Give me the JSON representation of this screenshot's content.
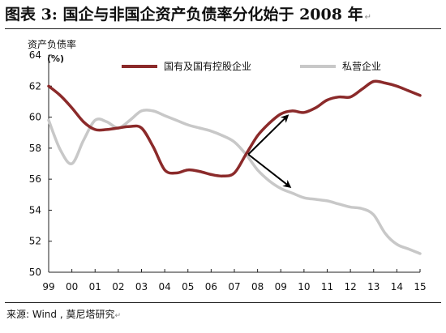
{
  "header": {
    "title": "图表 3:  国企与非国企资产负债率分化始于 2008 年",
    "title_mark": "↵"
  },
  "footer": {
    "source": "来源:  Wind  ,  莫尼塔研究",
    "source_mark": "↵"
  },
  "chart_data": {
    "type": "line",
    "ylabel": "资产负债率",
    "yunit": "(%)",
    "ylim": [
      50,
      64
    ],
    "yticks": [
      50,
      52,
      54,
      56,
      58,
      60,
      62,
      64
    ],
    "xlim": [
      1999,
      2015
    ],
    "xticks": [
      {
        "x": 1999,
        "label": "99"
      },
      {
        "x": 2000,
        "label": "00"
      },
      {
        "x": 2001,
        "label": "01"
      },
      {
        "x": 2002,
        "label": "02"
      },
      {
        "x": 2003,
        "label": "03"
      },
      {
        "x": 2004,
        "label": "04"
      },
      {
        "x": 2005,
        "label": "05"
      },
      {
        "x": 2006,
        "label": "06"
      },
      {
        "x": 2007,
        "label": "07"
      },
      {
        "x": 2008,
        "label": "08"
      },
      {
        "x": 2009,
        "label": "09"
      },
      {
        "x": 2010,
        "label": "10"
      },
      {
        "x": 2011,
        "label": "11"
      },
      {
        "x": 2012,
        "label": "12"
      },
      {
        "x": 2013,
        "label": "13"
      },
      {
        "x": 2014,
        "label": "14"
      },
      {
        "x": 2015,
        "label": "15"
      }
    ],
    "grid": false,
    "legend_position": "top",
    "series": [
      {
        "name": "国有及国有控股企业",
        "color": "#8b2a2a",
        "points": [
          [
            1999.0,
            62.0
          ],
          [
            1999.5,
            61.4
          ],
          [
            2000.0,
            60.6
          ],
          [
            2000.5,
            59.7
          ],
          [
            2001.0,
            59.2
          ],
          [
            2001.5,
            59.2
          ],
          [
            2002.0,
            59.3
          ],
          [
            2002.5,
            59.4
          ],
          [
            2003.0,
            59.3
          ],
          [
            2003.5,
            58.1
          ],
          [
            2004.0,
            56.6
          ],
          [
            2004.5,
            56.4
          ],
          [
            2005.0,
            56.6
          ],
          [
            2005.5,
            56.5
          ],
          [
            2006.0,
            56.3
          ],
          [
            2006.5,
            56.2
          ],
          [
            2007.0,
            56.4
          ],
          [
            2007.5,
            57.6
          ],
          [
            2008.0,
            58.8
          ],
          [
            2008.5,
            59.6
          ],
          [
            2009.0,
            60.2
          ],
          [
            2009.5,
            60.4
          ],
          [
            2010.0,
            60.3
          ],
          [
            2010.5,
            60.6
          ],
          [
            2011.0,
            61.1
          ],
          [
            2011.5,
            61.3
          ],
          [
            2012.0,
            61.3
          ],
          [
            2012.5,
            61.8
          ],
          [
            2013.0,
            62.3
          ],
          [
            2013.5,
            62.2
          ],
          [
            2014.0,
            62.0
          ],
          [
            2014.5,
            61.7
          ],
          [
            2015.0,
            61.4
          ]
        ]
      },
      {
        "name": "私营企业",
        "color": "#c8c8c8",
        "points": [
          [
            1999.0,
            59.8
          ],
          [
            1999.5,
            57.9
          ],
          [
            2000.0,
            57.0
          ],
          [
            2000.5,
            58.5
          ],
          [
            2001.0,
            59.8
          ],
          [
            2001.5,
            59.7
          ],
          [
            2002.0,
            59.3
          ],
          [
            2002.5,
            59.8
          ],
          [
            2003.0,
            60.4
          ],
          [
            2003.5,
            60.4
          ],
          [
            2004.0,
            60.1
          ],
          [
            2004.5,
            59.8
          ],
          [
            2005.0,
            59.5
          ],
          [
            2005.5,
            59.3
          ],
          [
            2006.0,
            59.1
          ],
          [
            2006.5,
            58.8
          ],
          [
            2007.0,
            58.4
          ],
          [
            2007.5,
            57.6
          ],
          [
            2008.0,
            56.6
          ],
          [
            2008.5,
            55.9
          ],
          [
            2009.0,
            55.4
          ],
          [
            2009.5,
            55.1
          ],
          [
            2010.0,
            54.8
          ],
          [
            2010.5,
            54.7
          ],
          [
            2011.0,
            54.6
          ],
          [
            2011.5,
            54.4
          ],
          [
            2012.0,
            54.2
          ],
          [
            2012.5,
            54.1
          ],
          [
            2013.0,
            53.7
          ],
          [
            2013.5,
            52.5
          ],
          [
            2014.0,
            51.8
          ],
          [
            2014.5,
            51.5
          ],
          [
            2015.0,
            51.2
          ]
        ]
      }
    ],
    "annotations": [
      {
        "type": "arrow",
        "from": [
          2007.6,
          57.6
        ],
        "to": [
          2009.3,
          60.1
        ],
        "color": "#000000"
      },
      {
        "type": "arrow",
        "from": [
          2007.6,
          57.6
        ],
        "to": [
          2009.4,
          55.5
        ],
        "color": "#000000"
      }
    ]
  }
}
